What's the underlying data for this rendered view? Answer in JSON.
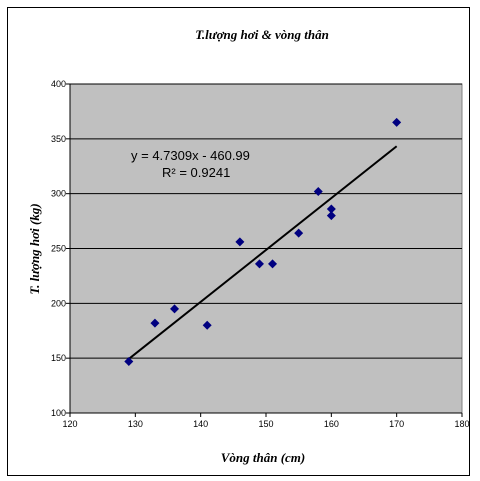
{
  "chart_data": {
    "type": "scatter",
    "title": "T.lượng hơi & vòng thân",
    "xlabel": "Vòng thân (cm)",
    "ylabel": "T. lượng hơi (kg)",
    "xlim": [
      120,
      180
    ],
    "ylim": [
      100,
      400
    ],
    "xticks": [
      120,
      130,
      140,
      150,
      160,
      170,
      180
    ],
    "yticks": [
      100,
      150,
      200,
      250,
      300,
      350,
      400
    ],
    "grid": "horizontal",
    "marker_color": "#000080",
    "plot_background": "#c0c0c0",
    "trendline_color": "#000000",
    "points": [
      {
        "x": 129,
        "y": 147
      },
      {
        "x": 133,
        "y": 182
      },
      {
        "x": 136,
        "y": 195
      },
      {
        "x": 141,
        "y": 180
      },
      {
        "x": 146,
        "y": 256
      },
      {
        "x": 149,
        "y": 236
      },
      {
        "x": 151,
        "y": 236
      },
      {
        "x": 155,
        "y": 264
      },
      {
        "x": 158,
        "y": 302
      },
      {
        "x": 160,
        "y": 286
      },
      {
        "x": 160,
        "y": 280
      },
      {
        "x": 170,
        "y": 365
      }
    ],
    "trendline": {
      "slope": 4.7309,
      "intercept": -460.99,
      "x_from": 129,
      "x_to": 170
    },
    "equation_label": "y = 4.7309x - 460.99",
    "r2_label": "R² = 0.9241"
  }
}
